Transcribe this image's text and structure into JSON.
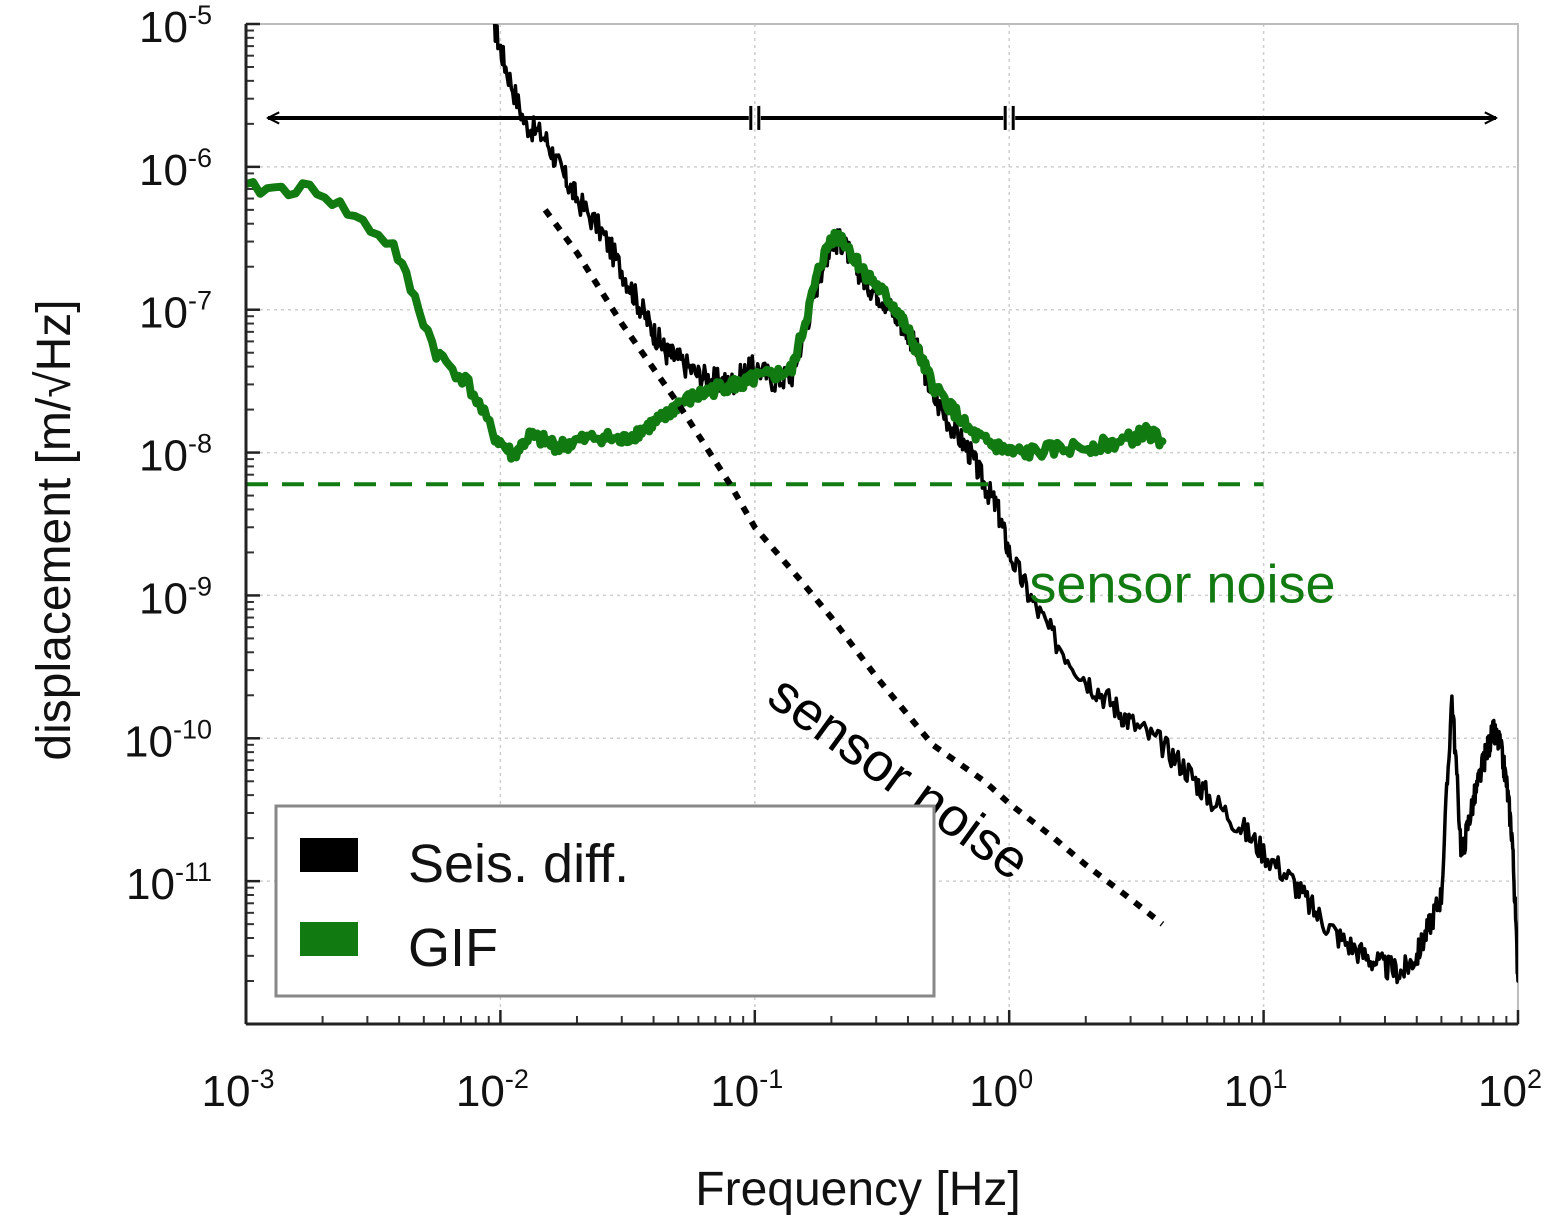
{
  "chart_data": {
    "type": "line",
    "xscale": "log",
    "yscale": "log",
    "xlim": [
      0.001,
      100
    ],
    "ylim": [
      1e-12,
      1e-05
    ],
    "grid": true,
    "xlabel": "Frequency [Hz]",
    "ylabel": "displacement [m/√Hz]",
    "x_ticks": [
      {
        "base": "10",
        "exp": "-3",
        "value": 0.001
      },
      {
        "base": "10",
        "exp": "-2",
        "value": 0.01
      },
      {
        "base": "10",
        "exp": "-1",
        "value": 0.1
      },
      {
        "base": "10",
        "exp": "0",
        "value": 1
      },
      {
        "base": "10",
        "exp": "1",
        "value": 10
      },
      {
        "base": "10",
        "exp": "2",
        "value": 100
      }
    ],
    "y_ticks": [
      {
        "base": "10",
        "exp": "-5",
        "value": 1e-05
      },
      {
        "base": "10",
        "exp": "-6",
        "value": 1e-06
      },
      {
        "base": "10",
        "exp": "-7",
        "value": 1e-07
      },
      {
        "base": "10",
        "exp": "-8",
        "value": 1e-08
      },
      {
        "base": "10",
        "exp": "-9",
        "value": 1e-09
      },
      {
        "base": "10",
        "exp": "-10",
        "value": 1e-10
      },
      {
        "base": "10",
        "exp": "-11",
        "value": 1e-11
      }
    ],
    "legend": {
      "placement": "bottom-left",
      "entries": [
        {
          "label": "Seis. diff.",
          "color": "#000000"
        },
        {
          "label": "GIF",
          "color": "#117a11"
        }
      ]
    },
    "series": [
      {
        "name": "Seis. diff.",
        "color": "#000000",
        "x": [
          0.0094,
          0.0105,
          0.0125,
          0.015,
          0.0175,
          0.02,
          0.025,
          0.03,
          0.035,
          0.04,
          0.045,
          0.05,
          0.06,
          0.07,
          0.08,
          0.09,
          0.1,
          0.12,
          0.14,
          0.16,
          0.18,
          0.2,
          0.22,
          0.25,
          0.28,
          0.32,
          0.36,
          0.4,
          0.45,
          0.5,
          0.6,
          0.7,
          0.8,
          0.9,
          1.0,
          1.2,
          1.5,
          2.0,
          2.5,
          3.0,
          4.0,
          5.0,
          6.0,
          8.0,
          10,
          13,
          16,
          20,
          25,
          30,
          35,
          40,
          45,
          50,
          55,
          60,
          65,
          70,
          75,
          80,
          85,
          90,
          95,
          100
        ],
        "y": [
          1e-05,
          5e-06,
          2e-06,
          1.6e-06,
          9e-07,
          6e-07,
          3.5e-07,
          1.9e-07,
          1.1e-07,
          7e-08,
          5e-08,
          4.5e-08,
          3.5e-08,
          3.2e-08,
          3e-08,
          3.5e-08,
          4e-08,
          3.2e-08,
          3.5e-08,
          8e-08,
          1.8e-07,
          3e-07,
          3e-07,
          2e-07,
          1.5e-07,
          1.2e-07,
          9e-08,
          7e-08,
          4.5e-08,
          2.5e-08,
          1.5e-08,
          1e-08,
          6e-09,
          4e-09,
          2e-09,
          1e-09,
          5e-10,
          2.6e-10,
          1.8e-10,
          1.3e-10,
          9e-11,
          6e-11,
          4e-11,
          2.5e-11,
          1.6e-11,
          1e-11,
          6e-12,
          4e-12,
          3e-12,
          2.5e-12,
          2.3e-12,
          3e-12,
          5e-12,
          8e-12,
          2e-10,
          1.5e-11,
          3e-11,
          5e-11,
          8e-11,
          1.1e-10,
          9e-11,
          5e-11,
          2e-11,
          2e-12
        ]
      },
      {
        "name": "GIF",
        "color": "#117a11",
        "x": [
          0.001,
          0.0019,
          0.0038,
          0.0056,
          0.0075,
          0.0095,
          0.0112,
          0.013,
          0.015,
          0.017,
          0.02,
          0.025,
          0.03,
          0.035,
          0.04,
          0.045,
          0.05,
          0.06,
          0.07,
          0.08,
          0.09,
          0.1,
          0.12,
          0.14,
          0.16,
          0.18,
          0.2,
          0.22,
          0.25,
          0.28,
          0.32,
          0.36,
          0.4,
          0.45,
          0.5,
          0.6,
          0.7,
          0.8,
          0.9,
          1.0,
          1.2,
          1.5,
          2.0,
          2.5,
          3.0,
          3.5,
          4.0
        ],
        "y": [
          7e-07,
          7e-07,
          2.8e-07,
          5e-08,
          3e-08,
          1.3e-08,
          9.5e-09,
          1.3e-08,
          1.2e-08,
          1.1e-08,
          1.2e-08,
          1.3e-08,
          1.2e-08,
          1.4e-08,
          1.6e-08,
          1.8e-08,
          2.2e-08,
          2.5e-08,
          2.8e-08,
          3e-08,
          3e-08,
          3.3e-08,
          3.5e-08,
          3.8e-08,
          9e-08,
          2e-07,
          3.2e-07,
          3.2e-07,
          2.2e-07,
          1.7e-07,
          1.3e-07,
          1e-07,
          7e-08,
          4.5e-08,
          3e-08,
          2e-08,
          1.4e-08,
          1.2e-08,
          1.1e-08,
          1e-08,
          1e-08,
          1.05e-08,
          1.1e-08,
          1.15e-08,
          1.25e-08,
          1.4e-08,
          1.2e-08
        ]
      },
      {
        "name": "",
        "color": "#117a11",
        "style": "dashed",
        "x": [
          0.001,
          10
        ],
        "y": [
          6e-09,
          6e-09
        ]
      },
      {
        "name": "",
        "color": "#000000",
        "style": "dotted",
        "x": [
          0.015,
          0.02,
          0.03,
          0.05,
          0.08,
          0.1,
          0.15,
          0.2,
          0.3,
          0.5,
          0.8,
          1.0,
          1.5,
          2.0,
          3.0,
          4.0
        ],
        "y": [
          5e-07,
          2.5e-07,
          8e-08,
          2.2e-08,
          6e-09,
          3e-09,
          1.3e-09,
          7e-10,
          2.7e-10,
          9e-11,
          5e-11,
          3.5e-11,
          2e-11,
          1.3e-11,
          7.5e-12,
          5e-12
        ]
      }
    ],
    "annotations": [
      {
        "text": "sensor noise",
        "color": "#117a11",
        "x": 1.8,
        "y": 1.3e-09
      },
      {
        "text": "sensor noise",
        "color": "#000000",
        "x": 0.05,
        "y": 1.5e-11
      }
    ],
    "range_markers": {
      "y": 2.2e-06,
      "segments": [
        [
          0.001,
          0.1
        ],
        [
          0.1,
          1.0
        ],
        [
          1.0,
          100
        ]
      ]
    }
  }
}
